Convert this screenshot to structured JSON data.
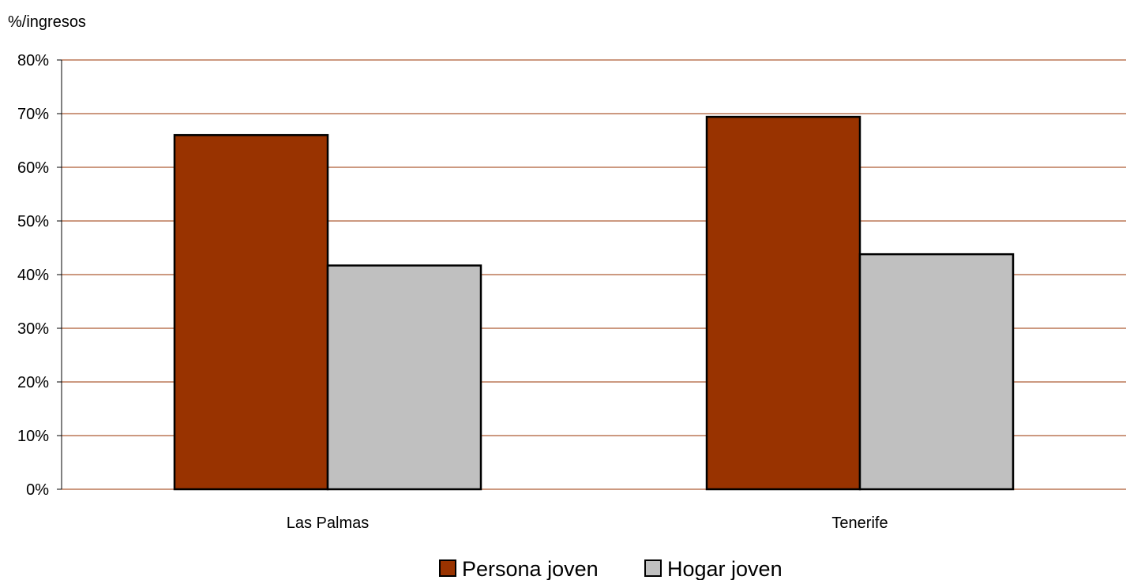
{
  "chart_data": {
    "type": "bar",
    "ylabel": "%/ingresos",
    "categories": [
      "Las Palmas",
      "Tenerife"
    ],
    "series": [
      {
        "name": "Persona joven",
        "values": [
          66,
          69.4
        ],
        "color": "#993300"
      },
      {
        "name": "Hogar joven",
        "values": [
          41.7,
          43.8
        ],
        "color": "#C0C0C0"
      }
    ],
    "ylim": [
      0,
      80
    ],
    "yticks": [
      0,
      10,
      20,
      30,
      40,
      50,
      60,
      70,
      80
    ],
    "ytick_format": "%",
    "grid": true,
    "grid_color": "#993300",
    "legend_position": "bottom"
  }
}
